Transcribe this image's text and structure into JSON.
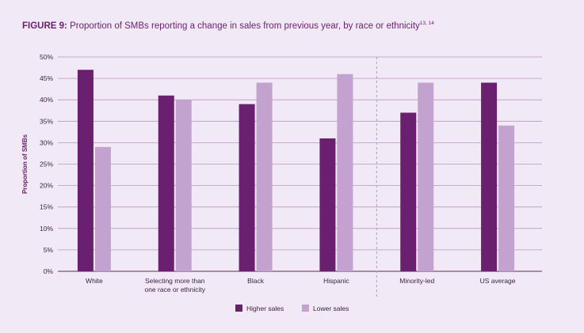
{
  "title": {
    "label": "FIGURE 9:",
    "text": "Proportion of SMBs reporting a change in sales from previous year, by race or ethnicity",
    "footnote": "13, 14"
  },
  "colors": {
    "higher": "#6b1f6f",
    "lower": "#c3a2cf",
    "grid": "#b997c3",
    "title": "#6a1f6e"
  },
  "chart_data": {
    "type": "bar",
    "title": "Proportion of SMBs reporting a change in sales from previous year, by race or ethnicity",
    "categories": [
      [
        "White"
      ],
      [
        "Selecting more than",
        "one race or ethnicity"
      ],
      [
        "Black"
      ],
      [
        "Hispanic"
      ],
      [
        "Minority-led"
      ],
      [
        "US average"
      ]
    ],
    "series": [
      {
        "name": "Higher sales",
        "values": [
          47,
          41,
          39,
          31,
          37,
          44
        ]
      },
      {
        "name": "Lower sales",
        "values": [
          29,
          40,
          44,
          46,
          44,
          34
        ]
      }
    ],
    "xlabel": "",
    "ylabel": "Proportion of SMBs",
    "ylim": [
      0,
      50
    ],
    "yticks": [
      "0%",
      "5%",
      "10%",
      "15%",
      "20%",
      "25%",
      "30%",
      "35%",
      "40%",
      "45%",
      "50%"
    ],
    "separator_after_category": 3,
    "grid": true,
    "legend_position": "bottom-center"
  }
}
